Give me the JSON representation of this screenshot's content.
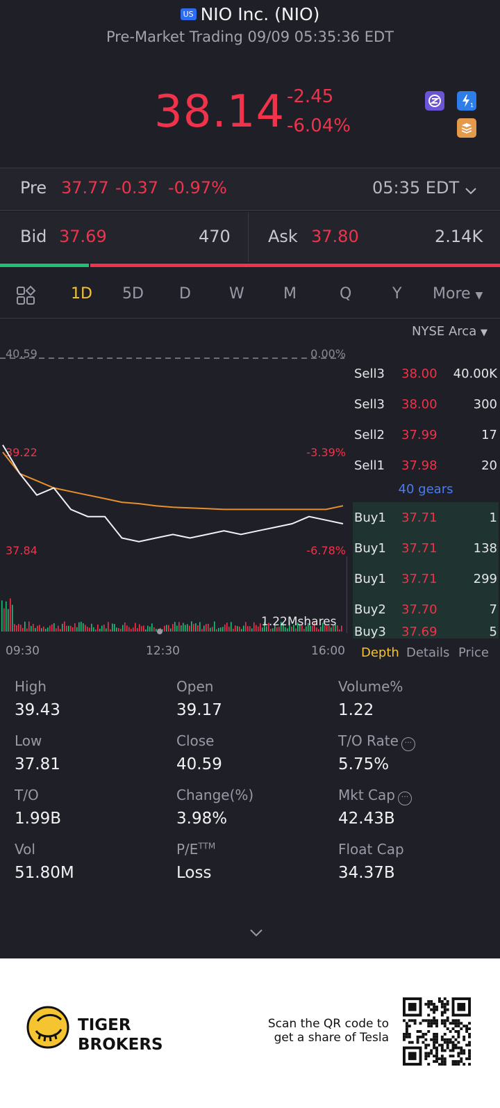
{
  "header": {
    "market_badge": "US",
    "title": "NIO Inc. (NIO)",
    "subtitle": "Pre-Market Trading 09/09 05:35:36 EDT"
  },
  "quote": {
    "price": "38.14",
    "change": "-2.45",
    "change_pct": "-6.04%",
    "icons": [
      "z-icon",
      "lightning-icon",
      "stack-icon"
    ],
    "lightning_badge": "1"
  },
  "pre_market": {
    "label": "Pre",
    "price": "37.77",
    "change": "-0.37",
    "change_pct": "-0.97%",
    "time": "05:35 EDT"
  },
  "bid_ask": {
    "bid_label": "Bid",
    "bid_price": "37.69",
    "bid_size": "470",
    "ask_label": "Ask",
    "ask_price": "37.80",
    "ask_size": "2.14K",
    "bid_ratio": 0.18
  },
  "tabs": {
    "items": [
      "1D",
      "5D",
      "D",
      "W",
      "M",
      "Q",
      "Y"
    ],
    "more": "More",
    "active": "1D"
  },
  "exchange": "NYSE Arca",
  "chart": {
    "prev_close": "40.59",
    "prev_close_pct": "0.00%",
    "high_label": "39.22",
    "high_pct": "-3.39%",
    "low_label": "37.84",
    "low_pct": "-6.78%",
    "volume_label": "1.22Mshares",
    "time_start": "09:30",
    "time_mid": "12:30",
    "time_end": "16:00"
  },
  "chart_data": {
    "type": "line",
    "x_start": "09:30",
    "x_end": "16:00",
    "y_range": [
      37.84,
      39.22
    ],
    "reference_line": 40.59,
    "series": [
      {
        "values": [
          39.3,
          38.9,
          38.6,
          38.7,
          38.4,
          38.3,
          38.3,
          38.0,
          37.95,
          38.0,
          38.05,
          38.0,
          38.05,
          38.1,
          38.05,
          38.1,
          38.15,
          38.2,
          38.3,
          38.25,
          38.2
        ]
      },
      {
        "values": [
          39.2,
          38.9,
          38.8,
          38.7,
          38.65,
          38.6,
          38.55,
          38.5,
          38.48,
          38.45,
          38.43,
          38.42,
          38.41,
          38.4,
          38.4,
          38.4,
          38.4,
          38.4,
          38.4,
          38.4,
          38.45
        ]
      }
    ]
  },
  "order_book": {
    "sells": [
      {
        "label": "Sell3",
        "price": "38.00",
        "size": "40.00K"
      },
      {
        "label": "Sell3",
        "price": "38.00",
        "size": "300"
      },
      {
        "label": "Sell2",
        "price": "37.99",
        "size": "17"
      },
      {
        "label": "Sell1",
        "price": "37.98",
        "size": "20"
      }
    ],
    "gears": "40 gears",
    "buys": [
      {
        "label": "Buy1",
        "price": "37.71",
        "size": "1"
      },
      {
        "label": "Buy1",
        "price": "37.71",
        "size": "138"
      },
      {
        "label": "Buy1",
        "price": "37.71",
        "size": "299"
      },
      {
        "label": "Buy2",
        "price": "37.70",
        "size": "7"
      },
      {
        "label": "Buy3",
        "price": "37.69",
        "size": "5"
      }
    ],
    "tabs": [
      "Depth",
      "Details",
      "Price"
    ]
  },
  "stats": [
    {
      "label": "High",
      "value": "39.43"
    },
    {
      "label": "Open",
      "value": "39.17"
    },
    {
      "label": "Volume%",
      "value": "1.22"
    },
    {
      "label": "Low",
      "value": "37.81"
    },
    {
      "label": "Close",
      "value": "40.59"
    },
    {
      "label": "T/O Rate",
      "value": "5.75%"
    },
    {
      "label": "T/O",
      "value": "1.99B"
    },
    {
      "label": "Change(%)",
      "value": "3.98%"
    },
    {
      "label": "Mkt Cap",
      "value": "42.43B"
    },
    {
      "label": "Vol",
      "value": "51.80M"
    },
    {
      "label": "P/E",
      "value": "Loss"
    },
    {
      "label": "Float Cap",
      "value": "34.37B"
    }
  ],
  "pe_suffix": "TTM",
  "footer": {
    "brand_line1": "TIGER",
    "brand_line2": "BROKERS",
    "qr_line1": "Scan the QR code to",
    "qr_line2": "get a share of Tesla"
  },
  "colors": {
    "down": "#f0334a",
    "up": "#1fbf74",
    "accent": "#f5c430",
    "background": "#1f1f27"
  }
}
